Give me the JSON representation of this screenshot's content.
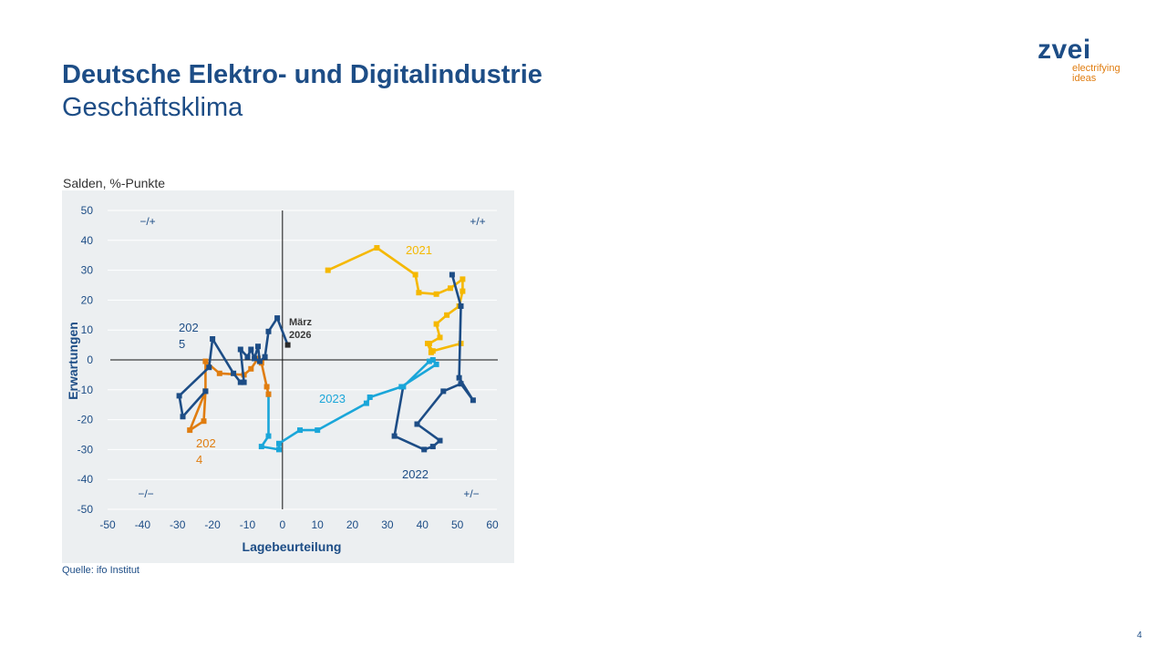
{
  "header": {
    "title": "Deutsche Elektro- und Digitalindustrie",
    "subtitle": "Geschäftsklima"
  },
  "logo": {
    "word": "zvei",
    "tagline_1": "electrifying",
    "tagline_2": "ideas"
  },
  "unit_label": "Salden, %-Punkte",
  "source": "Quelle: ifo Institut",
  "page_number": "4",
  "colors": {
    "brand_blue": "#1d4d86",
    "brand_orange": "#e07d10",
    "chart_background": "#eceff1"
  },
  "chart_data": {
    "type": "scatter",
    "xlabel": "Lagebeurteilung",
    "ylabel": "Erwartungen",
    "xlim": [
      -50,
      60
    ],
    "ylim": [
      -50,
      50
    ],
    "x_ticks": [
      "-50",
      "-40",
      "-30",
      "-20",
      "-10",
      "0",
      "10",
      "20",
      "30",
      "40",
      "50",
      "60"
    ],
    "y_ticks": [
      "50",
      "40",
      "30",
      "20",
      "10",
      "0",
      "-10",
      "-20",
      "-30",
      "-40",
      "-50"
    ],
    "grid": "horizontal",
    "quadrant_labels": {
      "top_left": "−/+",
      "top_right": "+/+",
      "bottom_left": "−/−",
      "bottom_right": "+/−"
    },
    "series": [
      {
        "name": "2021",
        "color": "#f5b800",
        "points": [
          [
            13,
            30
          ],
          [
            27,
            37.5
          ],
          [
            38,
            28.5
          ],
          [
            39,
            22.5
          ],
          [
            44,
            22
          ],
          [
            48,
            24
          ],
          [
            51.5,
            27
          ],
          [
            51.5,
            23
          ],
          [
            50.5,
            18
          ],
          [
            47,
            15
          ],
          [
            44,
            12
          ],
          [
            45,
            7.5
          ],
          [
            42,
            5.5
          ],
          [
            42.5,
            2.5
          ],
          [
            41.5,
            5.5
          ],
          [
            43,
            3
          ],
          [
            51,
            5.5
          ]
        ]
      },
      {
        "name": "2022",
        "color": "#1d4d86",
        "points": [
          [
            48.5,
            28.5
          ],
          [
            51,
            18
          ],
          [
            50.5,
            -6
          ],
          [
            54.5,
            -13.5
          ],
          [
            51,
            -8
          ],
          [
            46,
            -10.5
          ],
          [
            38.5,
            -21.5
          ],
          [
            45,
            -27
          ],
          [
            43,
            -29
          ],
          [
            40.5,
            -30
          ],
          [
            32,
            -25.5
          ],
          [
            34.5,
            -9
          ]
        ]
      },
      {
        "name": "2023",
        "color": "#1aa6d9",
        "points": [
          [
            34.5,
            -9
          ],
          [
            42,
            -0.5
          ],
          [
            43,
            0
          ],
          [
            44,
            -1.5
          ],
          [
            34,
            -9
          ],
          [
            25,
            -12.5
          ],
          [
            24,
            -14.5
          ],
          [
            10,
            -23.5
          ],
          [
            5,
            -23.5
          ],
          [
            -1,
            -28
          ],
          [
            -1,
            -30
          ],
          [
            -6,
            -29
          ],
          [
            -4,
            -25.5
          ],
          [
            -4,
            -11.5
          ]
        ]
      },
      {
        "name": "2024",
        "color": "#e07d10",
        "points": [
          [
            -4,
            -11.5
          ],
          [
            -4.5,
            -9
          ],
          [
            -6,
            -1
          ],
          [
            -7,
            0.5
          ],
          [
            -9,
            -3
          ],
          [
            -11,
            -5
          ],
          [
            -18,
            -4.5
          ],
          [
            -22,
            -0.5
          ],
          [
            -22,
            -10.5
          ],
          [
            -22.5,
            -20.5
          ],
          [
            -26.5,
            -23.5
          ],
          [
            -22,
            -10.5
          ]
        ]
      },
      {
        "name": "2025",
        "color": "#1d4d86",
        "points": [
          [
            -22,
            -10.5
          ],
          [
            -28.5,
            -19
          ],
          [
            -29.5,
            -12
          ],
          [
            -21,
            -2.5
          ],
          [
            -20,
            7
          ],
          [
            -14,
            -4.5
          ],
          [
            -12,
            -7.5
          ],
          [
            -11,
            -7.5
          ],
          [
            -12,
            3.5
          ],
          [
            -10,
            1
          ],
          [
            -9,
            3.5
          ],
          [
            -8,
            0.5
          ],
          [
            -7,
            4.5
          ],
          [
            -6.5,
            -0.5
          ],
          [
            -5,
            1
          ],
          [
            -4,
            9.5
          ],
          [
            -1.5,
            14
          ],
          [
            1.5,
            5
          ]
        ]
      }
    ],
    "annotations": {
      "label_2021": "2021",
      "label_2022": "2022",
      "label_2023": "2023",
      "label_2024_a": "202",
      "label_2024_b": "4",
      "label_2025_a": "202",
      "label_2025_b": "5",
      "last_point_a": "März",
      "last_point_b": "2026"
    }
  }
}
